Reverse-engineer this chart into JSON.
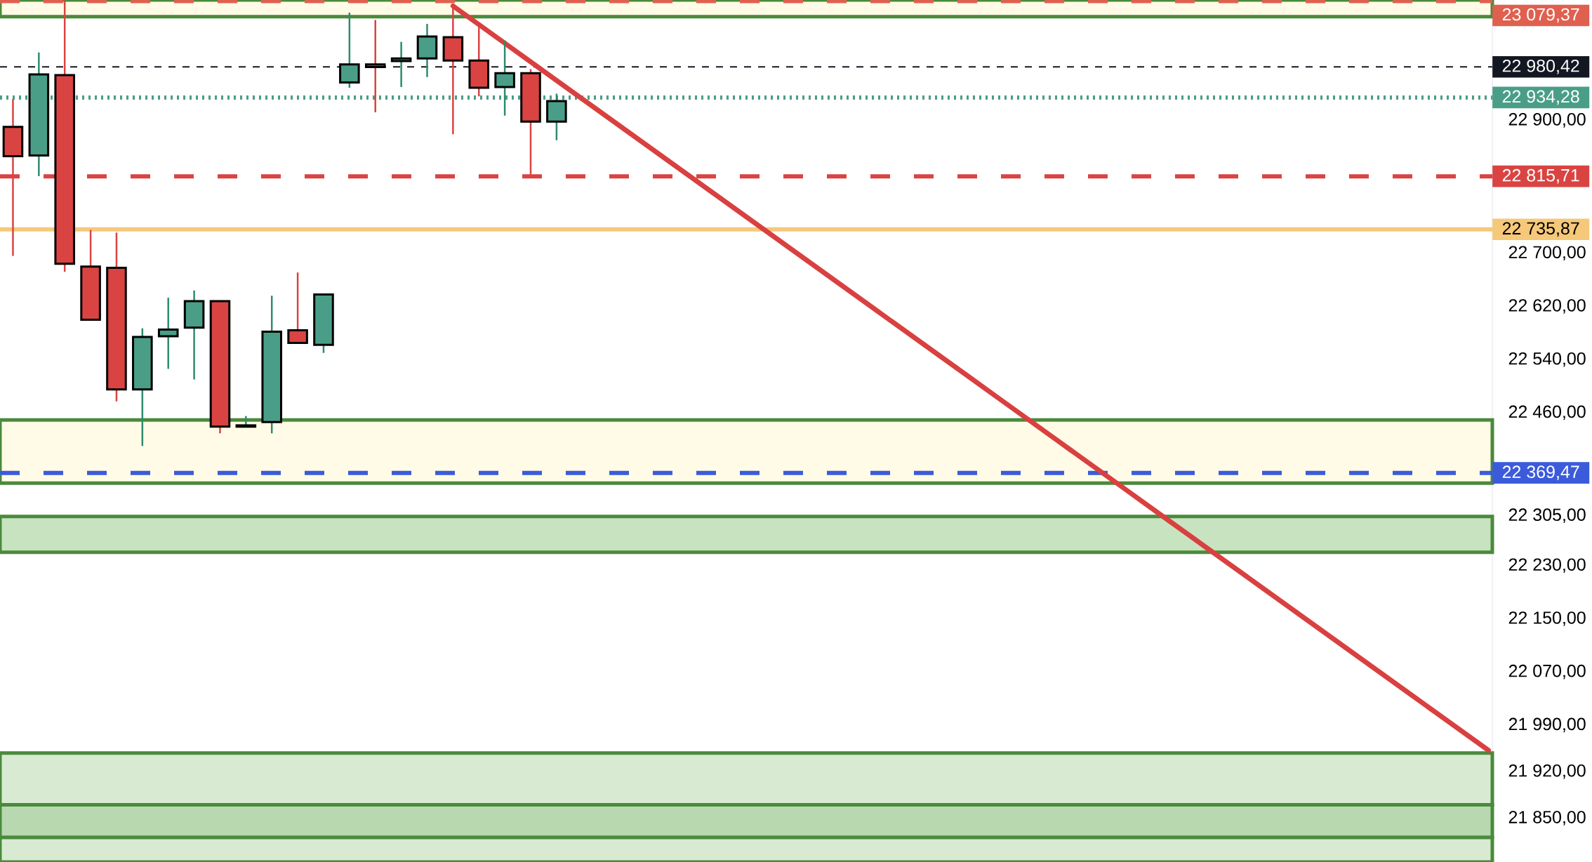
{
  "chart_data": {
    "type": "candlestick",
    "categories": [
      null,
      null,
      null,
      null,
      null,
      null,
      null,
      null,
      null,
      null,
      null,
      null,
      null,
      null,
      null,
      null,
      null,
      null,
      null,
      null,
      null,
      null,
      null,
      null,
      null,
      null,
      null,
      null,
      null,
      null,
      null,
      null,
      null,
      null,
      null,
      null,
      null,
      null,
      null,
      null,
      null,
      null,
      null,
      null,
      null,
      null,
      null,
      null,
      null,
      null,
      null,
      null,
      null,
      null,
      null,
      null,
      null,
      null
    ],
    "ohlc": [
      [
        22890,
        22932,
        22696,
        22846
      ],
      [
        22847,
        23002,
        22816,
        22969
      ],
      [
        22968,
        23080,
        22672,
        22684
      ],
      [
        22680,
        22735,
        22600,
        22600
      ],
      [
        22678,
        22731,
        22477,
        22495
      ],
      [
        22495,
        22587,
        22410,
        22574
      ],
      [
        22575,
        22633,
        22526,
        22585
      ],
      [
        22588,
        22644,
        22510,
        22628
      ],
      [
        22628,
        22628,
        22429,
        22439
      ],
      [
        22439,
        22455,
        22439,
        22441
      ],
      [
        22446,
        22636,
        22429,
        22582
      ],
      [
        22584,
        22671,
        22564,
        22565
      ],
      [
        22562,
        22638,
        22550,
        22638
      ],
      [
        22957,
        23062,
        22949,
        22984
      ],
      [
        22984,
        23051,
        22912,
        22980
      ],
      [
        22989,
        23018,
        22950,
        22993
      ],
      [
        22993,
        23045,
        22965,
        23026
      ],
      [
        23025,
        23072,
        22879,
        22990
      ],
      [
        22990,
        23040,
        22936,
        22949
      ],
      [
        22950,
        23020,
        22907,
        22971
      ],
      [
        22971,
        22977,
        22815,
        22898
      ],
      [
        22898,
        22940,
        22870,
        22929
      ],
      null,
      null,
      null,
      null,
      null,
      null,
      null,
      null,
      null,
      null,
      null,
      null,
      null,
      null,
      null,
      null,
      null,
      null,
      null,
      null,
      null,
      null,
      null,
      null,
      null,
      null,
      null,
      null,
      null,
      null,
      null,
      null,
      null,
      null,
      null,
      null
    ],
    "series": [
      {
        "type": "line",
        "color": "#d94040",
        "values": [
          null,
          null,
          null,
          null,
          null,
          null,
          null,
          null,
          null,
          null,
          null,
          null,
          null,
          null,
          null,
          null,
          null,
          23072,
          23044,
          23016,
          22988,
          22960,
          22932,
          22904,
          22876,
          22848,
          22820,
          22792,
          22764,
          22736,
          22708,
          22680,
          22652,
          22624,
          22596,
          22568,
          22540,
          22512,
          22484,
          22456,
          22428,
          22400,
          22372,
          22344,
          22316,
          22288,
          22260,
          22232,
          22204,
          22176,
          22148,
          22120,
          22092,
          22064,
          22036,
          22008,
          21980,
          21952
        ]
      }
    ],
    "ylim": [
      21784,
      23081
    ],
    "yticks": [
      {
        "value": 22900,
        "label": "22 900,00"
      },
      {
        "value": 22700,
        "label": "22 700,00"
      },
      {
        "value": 22620,
        "label": "22 620,00"
      },
      {
        "value": 22540,
        "label": "22 540,00"
      },
      {
        "value": 22460,
        "label": "22 460,00"
      },
      {
        "value": 22305,
        "label": "22 305,00"
      },
      {
        "value": 22230,
        "label": "22 230,00"
      },
      {
        "value": 22150,
        "label": "22 150,00"
      },
      {
        "value": 22070,
        "label": "22 070,00"
      },
      {
        "value": 21990,
        "label": "21 990,00"
      },
      {
        "value": 21920,
        "label": "21 920,00"
      },
      {
        "value": 21850,
        "label": "21 850,00"
      }
    ],
    "tick_labels": "y",
    "bands": [
      {
        "axis": "y",
        "from": 23056,
        "to": 23081,
        "color": "#fffbe6"
      },
      {
        "axis": "y",
        "from": 22354,
        "to": 22449,
        "color": "#fffbe6"
      },
      {
        "axis": "y",
        "from": 22250,
        "to": 22304,
        "color": "#c8e3c0"
      },
      {
        "axis": "y",
        "from": 21870,
        "to": 21948,
        "color": "#d9ead3"
      },
      {
        "axis": "y",
        "from": 21821,
        "to": 21870,
        "color": "#b8d8b0"
      },
      {
        "axis": "y",
        "from": 21784,
        "to": 21821,
        "color": "#d9ead3"
      }
    ],
    "ref_lines": [
      {
        "axis": "y",
        "value": 23079.37,
        "label": "23 079,37",
        "color": "#e06050",
        "line_style": "dashed"
      },
      {
        "axis": "y",
        "value": 22980.42,
        "label": "22 980,42",
        "color": "#131722",
        "line_style": "dashed"
      },
      {
        "axis": "y",
        "value": 22934.28,
        "label": "22 934,28",
        "color": "#4a9e88",
        "line_style": "dotted"
      },
      {
        "axis": "y",
        "value": 22815.71,
        "label": "22 815,71",
        "color": "#d94442",
        "line_style": "dashed"
      },
      {
        "axis": "y",
        "value": 22735.87,
        "label": "22 735,87",
        "color": "#f5c87a",
        "line_style": "solid"
      },
      {
        "axis": "y",
        "value": 22369.47,
        "label": "22 369,47",
        "color": "#3b5bdb",
        "line_style": "dashed"
      }
    ],
    "grid": false
  }
}
